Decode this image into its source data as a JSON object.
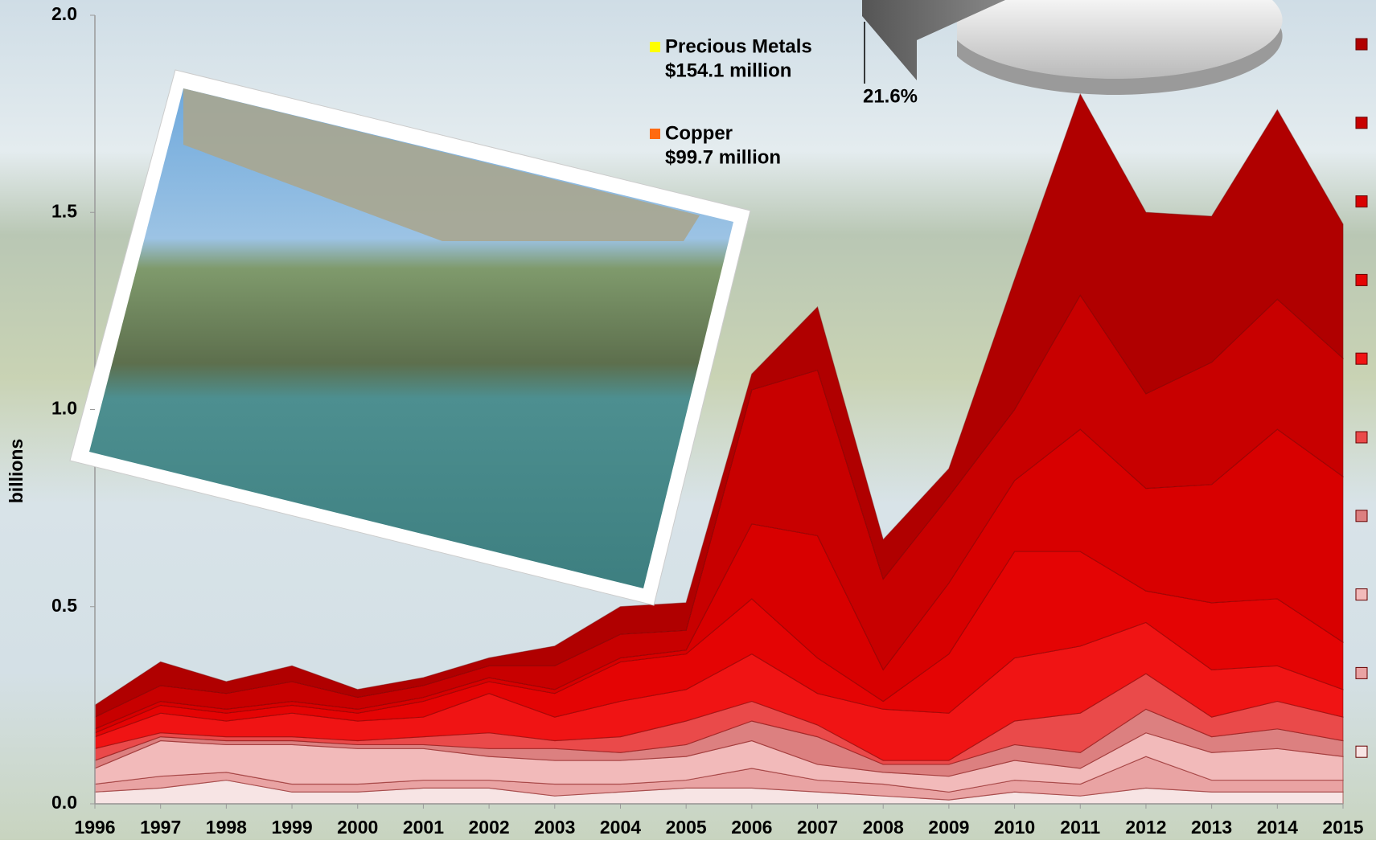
{
  "chart_data": {
    "type": "stacked-area",
    "y_label": "billions",
    "x": [
      1996,
      1997,
      1998,
      1999,
      2000,
      2001,
      2002,
      2003,
      2004,
      2005,
      2006,
      2007,
      2008,
      2009,
      2010,
      2011,
      2012,
      2013,
      2014,
      2015
    ],
    "xlim": [
      1996,
      2015
    ],
    "xticks": [
      1996,
      1997,
      1998,
      1999,
      2000,
      2001,
      2002,
      2003,
      2004,
      2005,
      2006,
      2007,
      2008,
      2009,
      2010,
      2011,
      2012,
      2013,
      2014,
      2015
    ],
    "ylim": [
      0,
      2
    ],
    "yticks": [
      {
        "value": 0,
        "label": "0.0"
      },
      {
        "value": 0.5,
        "label": "0.5"
      },
      {
        "value": 1,
        "label": "1.0"
      },
      {
        "value": 1.5,
        "label": "1.5"
      },
      {
        "value": 2,
        "label": "2.0"
      }
    ],
    "series": [
      {
        "color": "#f7e4e4",
        "values": [
          0.03,
          0.04,
          0.06,
          0.03,
          0.03,
          0.04,
          0.04,
          0.02,
          0.03,
          0.04,
          0.04,
          0.03,
          0.02,
          0.01,
          0.03,
          0.02,
          0.04,
          0.03,
          0.03,
          0.03
        ]
      },
      {
        "color": "#e9a3a3",
        "values": [
          0.02,
          0.03,
          0.02,
          0.02,
          0.02,
          0.02,
          0.02,
          0.03,
          0.02,
          0.02,
          0.05,
          0.03,
          0.03,
          0.02,
          0.03,
          0.03,
          0.08,
          0.03,
          0.03,
          0.03
        ]
      },
      {
        "color": "#f2baba",
        "values": [
          0.04,
          0.09,
          0.07,
          0.1,
          0.09,
          0.08,
          0.06,
          0.06,
          0.06,
          0.06,
          0.07,
          0.04,
          0.03,
          0.04,
          0.05,
          0.04,
          0.06,
          0.07,
          0.08,
          0.06
        ]
      },
      {
        "color": "#dc8080",
        "values": [
          0.02,
          0.01,
          0.01,
          0.01,
          0.01,
          0.01,
          0.02,
          0.03,
          0.02,
          0.03,
          0.05,
          0.07,
          0.02,
          0.03,
          0.04,
          0.04,
          0.06,
          0.04,
          0.05,
          0.04
        ]
      },
      {
        "color": "#ea4a4a",
        "values": [
          0.03,
          0.01,
          0.01,
          0.01,
          0.01,
          0.02,
          0.04,
          0.02,
          0.04,
          0.06,
          0.05,
          0.03,
          0.01,
          0.01,
          0.06,
          0.1,
          0.09,
          0.05,
          0.07,
          0.06
        ]
      },
      {
        "color": "#f01414",
        "values": [
          0.03,
          0.05,
          0.04,
          0.06,
          0.05,
          0.05,
          0.1,
          0.06,
          0.09,
          0.08,
          0.12,
          0.08,
          0.13,
          0.12,
          0.16,
          0.17,
          0.13,
          0.12,
          0.09,
          0.07
        ]
      },
      {
        "color": "#e40404",
        "values": [
          0.01,
          0.02,
          0.02,
          0.02,
          0.02,
          0.04,
          0.03,
          0.06,
          0.1,
          0.09,
          0.14,
          0.09,
          0.02,
          0.15,
          0.27,
          0.24,
          0.08,
          0.17,
          0.17,
          0.12
        ]
      },
      {
        "color": "#d80000",
        "values": [
          0.01,
          0.01,
          0.01,
          0.01,
          0.01,
          0.01,
          0.01,
          0.01,
          0.01,
          0.01,
          0.19,
          0.31,
          0.08,
          0.18,
          0.18,
          0.31,
          0.26,
          0.3,
          0.43,
          0.42
        ]
      },
      {
        "color": "#c80000",
        "values": [
          0.03,
          0.04,
          0.04,
          0.05,
          0.03,
          0.03,
          0.03,
          0.06,
          0.06,
          0.05,
          0.34,
          0.42,
          0.23,
          0.22,
          0.18,
          0.34,
          0.24,
          0.31,
          0.33,
          0.3
        ]
      },
      {
        "color": "#b00000",
        "values": [
          0.03,
          0.06,
          0.03,
          0.04,
          0.02,
          0.02,
          0.02,
          0.05,
          0.07,
          0.07,
          0.04,
          0.16,
          0.1,
          0.07,
          0.33,
          0.51,
          0.46,
          0.37,
          0.48,
          0.34
        ]
      }
    ]
  },
  "inset_pie": {
    "labels": [
      {
        "name": "Precious Metals",
        "amount": "$154.1 million",
        "color": "#ffff00"
      },
      {
        "name": "Copper",
        "amount": "$99.7 million",
        "color": "#ff6a10"
      }
    ],
    "percent_label": "21.6%"
  }
}
